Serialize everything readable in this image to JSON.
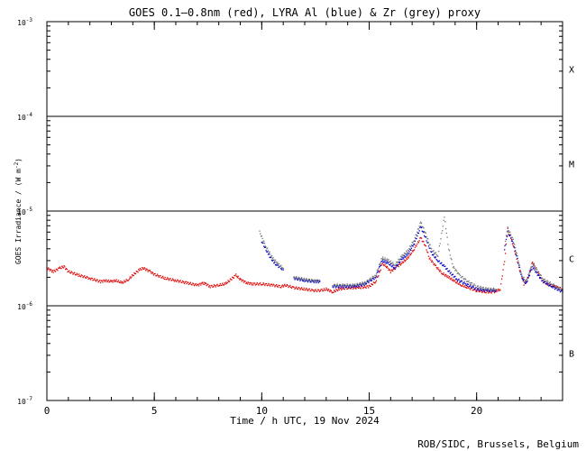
{
  "credit": "ROB/SIDC, Brussels, Belgium",
  "colors": {
    "goes": "#dd0000",
    "lyra_al": "#0000cc",
    "zr": "#777777",
    "axes": "#000000"
  },
  "chart_data": {
    "type": "scatter",
    "title": "GOES 0.1—0.8nm (red), LYRA Al (blue) & Zr (grey) proxy",
    "xlabel": "Time / h UTC, 19 Nov 2024",
    "ylabel_main": "GOES Irradiance / (W m",
    "ylabel_sup": "-2",
    "ylabel_end": ")",
    "xlim": [
      0,
      24
    ],
    "ylim": [
      1e-07,
      0.001
    ],
    "yscale": "log",
    "x_ticks": [
      {
        "value": 0,
        "label": "0"
      },
      {
        "value": 5,
        "label": "5"
      },
      {
        "value": 10,
        "label": "10"
      },
      {
        "value": 15,
        "label": "15"
      },
      {
        "value": 20,
        "label": "20"
      }
    ],
    "y_ticks": [
      {
        "value": 0.001,
        "base": "10",
        "exp": "-3"
      },
      {
        "value": 0.0001,
        "base": "10",
        "exp": "-4"
      },
      {
        "value": 1e-05,
        "base": "10",
        "exp": "-5"
      },
      {
        "value": 1e-06,
        "base": "10",
        "exp": "-6"
      },
      {
        "value": 1e-07,
        "base": "10",
        "exp": "-7"
      }
    ],
    "class_lines": [
      0.0001,
      1e-05,
      1e-06
    ],
    "flare_classes": [
      {
        "label": "X",
        "y": 0.000316
      },
      {
        "label": "M",
        "y": 3.16e-05
      },
      {
        "label": "C",
        "y": 3.16e-06
      },
      {
        "label": "B",
        "y": 3.16e-07
      }
    ],
    "series": [
      {
        "color": "#dd0000",
        "segments": [
          [
            [
              0.0,
              2.5e-06
            ],
            [
              0.3,
              2.3e-06
            ],
            [
              0.6,
              2.5e-06
            ],
            [
              0.8,
              2.6e-06
            ],
            [
              1.0,
              2.3e-06
            ],
            [
              1.5,
              2.1e-06
            ],
            [
              2.0,
              1.95e-06
            ],
            [
              2.5,
              1.8e-06
            ],
            [
              2.7,
              1.85e-06
            ],
            [
              3.0,
              1.8e-06
            ],
            [
              3.2,
              1.85e-06
            ],
            [
              3.5,
              1.75e-06
            ],
            [
              3.8,
              1.9e-06
            ],
            [
              4.0,
              2.1e-06
            ],
            [
              4.3,
              2.4e-06
            ],
            [
              4.5,
              2.5e-06
            ],
            [
              4.8,
              2.3e-06
            ],
            [
              5.0,
              2.15e-06
            ],
            [
              5.5,
              1.95e-06
            ],
            [
              6.0,
              1.85e-06
            ],
            [
              6.5,
              1.75e-06
            ],
            [
              7.0,
              1.65e-06
            ],
            [
              7.3,
              1.75e-06
            ],
            [
              7.6,
              1.6e-06
            ],
            [
              8.0,
              1.65e-06
            ],
            [
              8.3,
              1.7e-06
            ],
            [
              8.5,
              1.85e-06
            ],
            [
              8.8,
              2.1e-06
            ],
            [
              9.0,
              1.9e-06
            ],
            [
              9.3,
              1.75e-06
            ],
            [
              9.6,
              1.7e-06
            ],
            [
              10.0,
              1.7e-06
            ],
            [
              10.5,
              1.65e-06
            ],
            [
              10.9,
              1.6e-06
            ],
            [
              11.1,
              1.65e-06
            ],
            [
              11.5,
              1.55e-06
            ],
            [
              12.0,
              1.5e-06
            ],
            [
              12.4,
              1.45e-06
            ],
            [
              12.8,
              1.45e-06
            ],
            [
              13.0,
              1.5e-06
            ],
            [
              13.3,
              1.4e-06
            ],
            [
              13.6,
              1.5e-06
            ],
            [
              14.0,
              1.55e-06
            ],
            [
              14.5,
              1.55e-06
            ],
            [
              15.0,
              1.6e-06
            ],
            [
              15.3,
              1.8e-06
            ],
            [
              15.5,
              2.3e-06
            ],
            [
              15.6,
              2.8e-06
            ],
            [
              15.8,
              2.6e-06
            ],
            [
              16.0,
              2.3e-06
            ],
            [
              16.3,
              2.6e-06
            ],
            [
              16.5,
              2.8e-06
            ],
            [
              16.8,
              3.2e-06
            ],
            [
              17.1,
              4e-06
            ],
            [
              17.4,
              5.2e-06
            ],
            [
              17.6,
              4.4e-06
            ],
            [
              17.8,
              3.2e-06
            ],
            [
              18.1,
              2.6e-06
            ],
            [
              18.4,
              2.2e-06
            ],
            [
              18.7,
              2e-06
            ],
            [
              19.0,
              1.8e-06
            ],
            [
              19.3,
              1.65e-06
            ],
            [
              19.6,
              1.55e-06
            ],
            [
              20.0,
              1.45e-06
            ],
            [
              20.4,
              1.4e-06
            ],
            [
              20.8,
              1.4e-06
            ],
            [
              21.1,
              1.5e-06
            ],
            [
              21.3,
              3e-06
            ],
            [
              21.45,
              6.4e-06
            ],
            [
              21.6,
              5.2e-06
            ],
            [
              21.8,
              3.6e-06
            ],
            [
              22.0,
              2.4e-06
            ],
            [
              22.2,
              1.7e-06
            ],
            [
              22.4,
              2e-06
            ],
            [
              22.6,
              2.9e-06
            ],
            [
              22.8,
              2.4e-06
            ],
            [
              23.0,
              1.9e-06
            ],
            [
              23.3,
              1.7e-06
            ],
            [
              23.6,
              1.6e-06
            ],
            [
              24.0,
              1.5e-06
            ]
          ]
        ]
      },
      {
        "color": "#0000cc",
        "segments": [
          [
            [
              10.0,
              4.8e-06
            ],
            [
              10.3,
              3.5e-06
            ],
            [
              10.6,
              2.8e-06
            ],
            [
              11.0,
              2.4e-06
            ]
          ],
          [
            [
              11.5,
              1.95e-06
            ],
            [
              12.0,
              1.85e-06
            ],
            [
              12.4,
              1.8e-06
            ],
            [
              12.7,
              1.8e-06
            ]
          ],
          [
            [
              13.3,
              1.6e-06
            ],
            [
              13.8,
              1.6e-06
            ],
            [
              14.3,
              1.6e-06
            ],
            [
              14.8,
              1.7e-06
            ],
            [
              15.3,
              2e-06
            ],
            [
              15.6,
              3e-06
            ],
            [
              15.9,
              2.8e-06
            ],
            [
              16.2,
              2.5e-06
            ],
            [
              16.5,
              3.1e-06
            ],
            [
              16.8,
              3.5e-06
            ],
            [
              17.1,
              4.6e-06
            ],
            [
              17.4,
              6.8e-06
            ],
            [
              17.6,
              5.4e-06
            ],
            [
              17.9,
              3.6e-06
            ],
            [
              18.2,
              3e-06
            ],
            [
              18.5,
              2.6e-06
            ],
            [
              18.8,
              2.2e-06
            ],
            [
              19.1,
              1.9e-06
            ],
            [
              19.5,
              1.7e-06
            ],
            [
              20.0,
              1.5e-06
            ],
            [
              20.5,
              1.45e-06
            ],
            [
              20.9,
              1.45e-06
            ]
          ],
          [
            [
              21.3,
              4e-06
            ],
            [
              21.45,
              6e-06
            ],
            [
              21.7,
              4.6e-06
            ],
            [
              21.9,
              3.1e-06
            ],
            [
              22.1,
              2e-06
            ],
            [
              22.3,
              1.7e-06
            ],
            [
              22.6,
              2.6e-06
            ],
            [
              22.8,
              2.2e-06
            ],
            [
              23.1,
              1.8e-06
            ],
            [
              23.5,
              1.6e-06
            ],
            [
              24.0,
              1.4e-06
            ]
          ]
        ]
      },
      {
        "color": "#777777",
        "segments": [
          [
            [
              9.9,
              6e-06
            ],
            [
              10.2,
              4.2e-06
            ],
            [
              10.5,
              3.2e-06
            ],
            [
              10.8,
              2.7e-06
            ],
            [
              11.0,
              2.5e-06
            ]
          ],
          [
            [
              11.5,
              2e-06
            ],
            [
              12.0,
              1.9e-06
            ],
            [
              12.4,
              1.85e-06
            ],
            [
              12.7,
              1.85e-06
            ]
          ],
          [
            [
              13.3,
              1.65e-06
            ],
            [
              13.8,
              1.65e-06
            ],
            [
              14.3,
              1.65e-06
            ],
            [
              14.8,
              1.75e-06
            ],
            [
              15.3,
              2.1e-06
            ],
            [
              15.6,
              3.2e-06
            ],
            [
              15.9,
              3e-06
            ],
            [
              16.2,
              2.7e-06
            ],
            [
              16.5,
              3.3e-06
            ],
            [
              16.8,
              3.8e-06
            ],
            [
              17.1,
              5e-06
            ],
            [
              17.4,
              7.6e-06
            ],
            [
              17.6,
              6e-06
            ],
            [
              17.9,
              3.9e-06
            ],
            [
              18.2,
              3.4e-06
            ],
            [
              18.5,
              8.6e-06
            ],
            [
              18.7,
              4e-06
            ],
            [
              18.9,
              2.6e-06
            ],
            [
              19.2,
              2.1e-06
            ],
            [
              19.6,
              1.8e-06
            ],
            [
              20.0,
              1.6e-06
            ],
            [
              20.5,
              1.5e-06
            ],
            [
              20.9,
              1.5e-06
            ]
          ],
          [
            [
              21.3,
              4.4e-06
            ],
            [
              21.45,
              6.6e-06
            ],
            [
              21.7,
              5e-06
            ],
            [
              21.9,
              3.3e-06
            ],
            [
              22.1,
              2.1e-06
            ],
            [
              22.3,
              1.8e-06
            ],
            [
              22.6,
              2.8e-06
            ],
            [
              22.8,
              2.4e-06
            ],
            [
              23.1,
              1.9e-06
            ],
            [
              23.5,
              1.7e-06
            ],
            [
              24.0,
              1.45e-06
            ]
          ]
        ]
      }
    ]
  }
}
